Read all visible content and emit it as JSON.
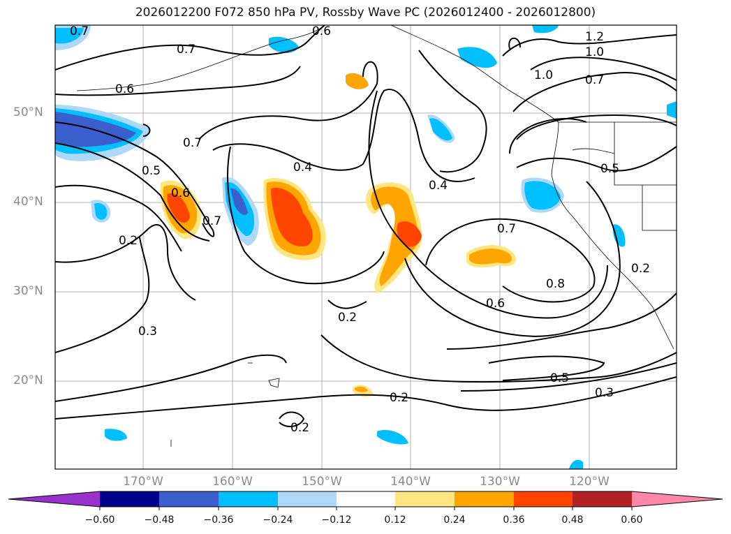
{
  "title": "2026012200 F072 850 hPa PV, Rossby Wave PC (2026012400 - 2026012800)",
  "lat_labels": [
    "50°N",
    "40°N",
    "30°N",
    "20°N"
  ],
  "lon_labels": [
    "170°W",
    "160°W",
    "150°W",
    "140°W",
    "130°W",
    "120°W"
  ],
  "contour_labels": [
    "0.7",
    "0.6",
    "0.7",
    "0.6",
    "1.2",
    "1.0",
    "1.0",
    "0.7",
    "0.7",
    "0.5",
    "0.6",
    "0.7",
    "0.4",
    "0.4",
    "0.5",
    "0.2",
    "0.7",
    "0.8",
    "0.6",
    "0.2",
    "0.3",
    "0.2",
    "0.5",
    "0.3",
    "0.2",
    "0.2"
  ],
  "colorbar": {
    "ticks": [
      "−0.60",
      "−0.48",
      "−0.36",
      "−0.24",
      "−0.12",
      "0.12",
      "0.24",
      "0.36",
      "0.48",
      "0.60"
    ],
    "colors": [
      "#9932cc",
      "#00008b",
      "#3a5fcd",
      "#00bfff",
      "#add8f8",
      "#ffffff",
      "#ffe680",
      "#ffa500",
      "#ff4500",
      "#b22222",
      "#ff88aa"
    ]
  },
  "shading_colors": {
    "neg_strong": "#3a5fcd",
    "neg_mid": "#00bfff",
    "neg_weak": "#add8f8",
    "pos_weak": "#ffe680",
    "pos_mid": "#ffa500",
    "pos_strong": "#ff4500"
  }
}
